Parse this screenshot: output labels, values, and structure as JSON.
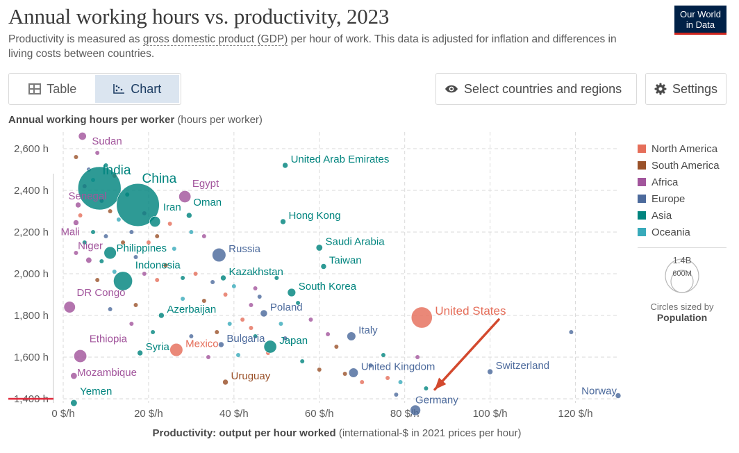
{
  "header": {
    "title": "Annual working hours vs. productivity, 2023",
    "subtitle_pre": "Productivity is measured as ",
    "subtitle_term": "gross domestic product (GDP)",
    "subtitle_post": " per hour of work. This data is adjusted for inflation and differences in living costs between countries.",
    "logo_line1": "Our World",
    "logo_line2": "in Data"
  },
  "tabs": [
    {
      "label": "Table",
      "icon": "table-icon",
      "active": false
    },
    {
      "label": "Chart",
      "icon": "chart-icon",
      "active": true
    }
  ],
  "toolbar": {
    "select_label": "Select countries and regions",
    "select_icon": "eye-icon",
    "settings_label": "Settings",
    "settings_icon": "gear-icon"
  },
  "axis_titles": {
    "y_bold": "Annual working hours per worker",
    "y_unit": " (hours per worker)",
    "x_bold": "Productivity: output per hour worked",
    "x_unit": " (international-$ in 2021 prices per hour)"
  },
  "size_legend": {
    "large": "1.4B",
    "small": "600M",
    "caption": "Circles sized by",
    "caption_bold": "Population"
  },
  "chart_data": {
    "type": "scatter",
    "title": "Annual working hours vs. productivity, 2023",
    "xlabel": "Productivity: output per hour worked (international-$ in 2021 prices per hour)",
    "ylabel": "Annual working hours per worker (hours per worker)",
    "xlim": [
      0,
      130
    ],
    "ylim": [
      1380,
      2680
    ],
    "x_ticks": [
      0,
      20,
      40,
      60,
      80,
      100,
      120
    ],
    "x_tick_labels": [
      "0 $/h",
      "20 $/h",
      "40 $/h",
      "60 $/h",
      "80 $/h",
      "100 $/h",
      "120 $/h"
    ],
    "y_ticks": [
      1400,
      1600,
      1800,
      2000,
      2200,
      2400,
      2600
    ],
    "y_tick_labels": [
      "1,400 h",
      "1,600 h",
      "1,800 h",
      "2,000 h",
      "2,200 h",
      "2,400 h",
      "2,600 h"
    ],
    "grid": true,
    "legend_position": "right",
    "regions": [
      {
        "name": "North America",
        "color": "#e56e5a"
      },
      {
        "name": "South America",
        "color": "#9a5129"
      },
      {
        "name": "Africa",
        "color": "#a2559c"
      },
      {
        "name": "Europe",
        "color": "#4c6a9c"
      },
      {
        "name": "Asia",
        "color": "#00847e"
      },
      {
        "name": "Oceania",
        "color": "#38aaba"
      }
    ],
    "points": [
      {
        "label": "Sudan",
        "region": "Africa",
        "x": 4.5,
        "y": 2660,
        "pop": 48
      },
      {
        "label": "India",
        "region": "Asia",
        "x": 8.5,
        "y": 2410,
        "pop": 1430
      },
      {
        "label": "China",
        "region": "Asia",
        "x": 17.5,
        "y": 2330,
        "pop": 1410
      },
      {
        "label": "Senegal",
        "region": "Africa",
        "x": 3.5,
        "y": 2330,
        "pop": 18
      },
      {
        "label": "Egypt",
        "region": "Africa",
        "x": 28.5,
        "y": 2370,
        "pop": 112
      },
      {
        "label": "Iran",
        "region": "Asia",
        "x": 21.5,
        "y": 2250,
        "pop": 89
      },
      {
        "label": "Oman",
        "region": "Asia",
        "x": 29.5,
        "y": 2280,
        "pop": 5
      },
      {
        "label": "Mali",
        "region": "Africa",
        "x": 3.0,
        "y": 2245,
        "pop": 23
      },
      {
        "label": "United Arab Emirates",
        "region": "Asia",
        "x": 52,
        "y": 2520,
        "pop": 10
      },
      {
        "label": "Hong Kong",
        "region": "Asia",
        "x": 51.5,
        "y": 2250,
        "pop": 7.5
      },
      {
        "label": "Philippines",
        "region": "Asia",
        "x": 11,
        "y": 2100,
        "pop": 117
      },
      {
        "label": "Russia",
        "region": "Europe",
        "x": 36.5,
        "y": 2090,
        "pop": 144
      },
      {
        "label": "Saudi Arabia",
        "region": "Asia",
        "x": 60,
        "y": 2125,
        "pop": 33
      },
      {
        "label": "Niger",
        "region": "Africa",
        "x": 6,
        "y": 2065,
        "pop": 27
      },
      {
        "label": "Taiwan",
        "region": "Asia",
        "x": 61,
        "y": 2035,
        "pop": 24
      },
      {
        "label": "Indonesia",
        "region": "Asia",
        "x": 14,
        "y": 1965,
        "pop": 277
      },
      {
        "label": "Kazakhstan",
        "region": "Asia",
        "x": 37.5,
        "y": 1980,
        "pop": 20
      },
      {
        "label": "South Korea",
        "region": "Asia",
        "x": 53.5,
        "y": 1910,
        "pop": 52
      },
      {
        "label": "DR Congo",
        "region": "Africa",
        "x": 1.5,
        "y": 1840,
        "pop": 102
      },
      {
        "label": "Poland",
        "region": "Europe",
        "x": 47,
        "y": 1810,
        "pop": 38
      },
      {
        "label": "Azerbaijan",
        "region": "Asia",
        "x": 23,
        "y": 1800,
        "pop": 10
      },
      {
        "label": "United States",
        "region": "North America",
        "x": 84,
        "y": 1790,
        "pop": 340
      },
      {
        "label": "Italy",
        "region": "Europe",
        "x": 67.5,
        "y": 1700,
        "pop": 59
      },
      {
        "label": "Japan",
        "region": "Asia",
        "x": 48.5,
        "y": 1650,
        "pop": 124
      },
      {
        "label": "Mexico",
        "region": "North America",
        "x": 26.5,
        "y": 1635,
        "pop": 128
      },
      {
        "label": "Bulgaria",
        "region": "Europe",
        "x": 37,
        "y": 1660,
        "pop": 6.5
      },
      {
        "label": "Syria",
        "region": "Asia",
        "x": 18,
        "y": 1620,
        "pop": 23
      },
      {
        "label": "Ethiopia",
        "region": "Africa",
        "x": 4,
        "y": 1605,
        "pop": 126
      },
      {
        "label": "Mozambique",
        "region": "Africa",
        "x": 2.5,
        "y": 1510,
        "pop": 33
      },
      {
        "label": "United Kingdom",
        "region": "Europe",
        "x": 68,
        "y": 1525,
        "pop": 68
      },
      {
        "label": "Switzerland",
        "region": "Europe",
        "x": 100,
        "y": 1530,
        "pop": 8.8
      },
      {
        "label": "Uruguay",
        "region": "South America",
        "x": 38,
        "y": 1480,
        "pop": 3.4
      },
      {
        "label": "Norway",
        "region": "Europe",
        "x": 130,
        "y": 1415,
        "pop": 5.5
      },
      {
        "label": "Yemen",
        "region": "Asia",
        "x": 2.5,
        "y": 1380,
        "pop": 34
      },
      {
        "label": "Germany",
        "region": "Europe",
        "x": 82.5,
        "y": 1345,
        "pop": 84
      }
    ],
    "annotation": {
      "type": "arrow",
      "points_to": "Germany",
      "color": "#d3492e"
    }
  }
}
